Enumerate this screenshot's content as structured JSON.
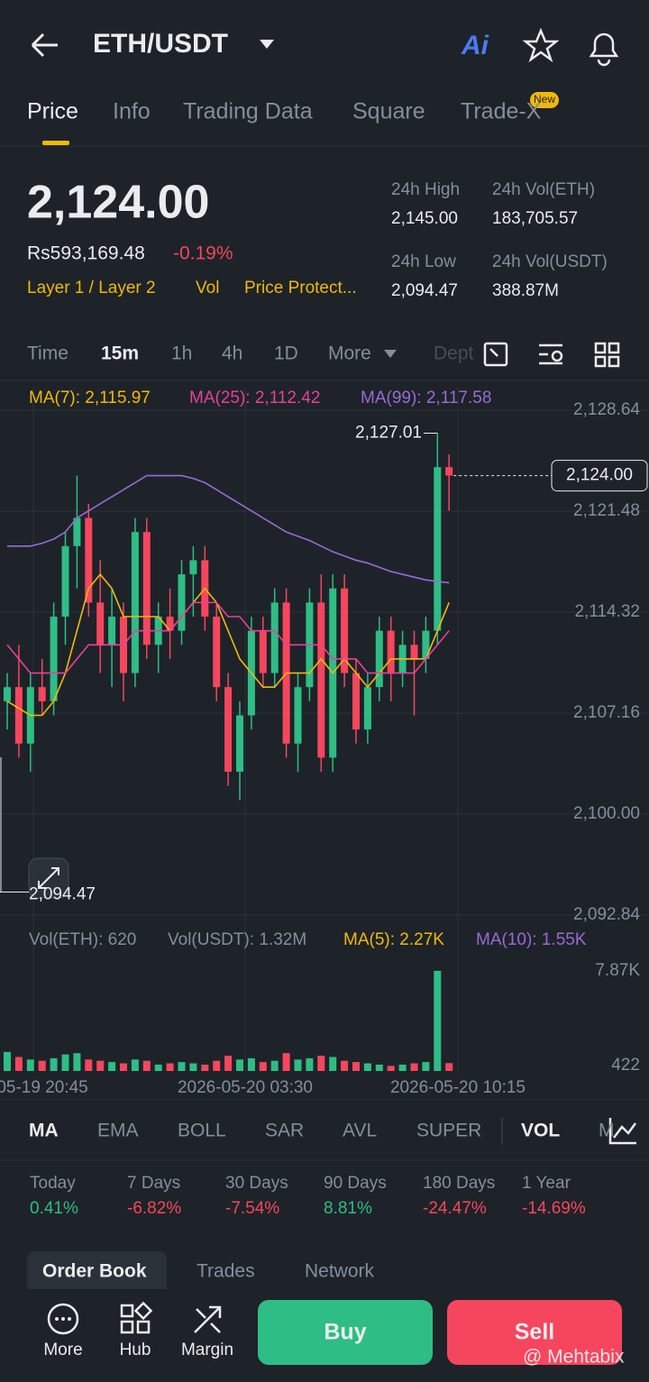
{
  "header": {
    "pair": "ETH/USDT",
    "ai": "Ai"
  },
  "tabs": [
    "Price",
    "Info",
    "Trading Data",
    "Square",
    "Trade-X"
  ],
  "tab_badge": "New",
  "ticker": {
    "price": "2,124.00",
    "fiat": "Rs593,169.48",
    "change": "-0.19%",
    "tags": [
      "Layer 1 / Layer 2",
      "Vol",
      "Price Protect..."
    ],
    "stats": [
      {
        "label": "24h High",
        "value": "2,145.00"
      },
      {
        "label": "24h Vol(ETH)",
        "value": "183,705.57"
      },
      {
        "label": "24h Low",
        "value": "2,094.47"
      },
      {
        "label": "24h Vol(USDT)",
        "value": "388.87M"
      }
    ]
  },
  "timeframes": [
    "Time",
    "15m",
    "1h",
    "4h",
    "1D",
    "More",
    "Dept"
  ],
  "chart_data": {
    "type": "candlestick",
    "open": [
      2108,
      2109,
      2105,
      2109,
      2108,
      2114,
      2119,
      2121,
      2115,
      2112,
      2114,
      2110,
      2120,
      2112,
      2114,
      2113,
      2117,
      2118,
      2114,
      2109,
      2103,
      2107,
      2113,
      2110,
      2115,
      2105,
      2109,
      2115,
      2104,
      2116,
      2110,
      2106,
      2109,
      2113,
      2110,
      2112,
      2111,
      2113,
      2124.6
    ],
    "high": [
      2110,
      2112,
      2110,
      2111,
      2115,
      2120,
      2124,
      2122,
      2118,
      2116,
      2115,
      2121,
      2121,
      2115,
      2116,
      2118,
      2119,
      2119,
      2115,
      2110,
      2108,
      2114,
      2114,
      2116,
      2116,
      2110,
      2116,
      2117,
      2117,
      2117,
      2111,
      2110,
      2114,
      2114,
      2113,
      2113,
      2114,
      2127.01,
      2125.5
    ],
    "low": [
      2106,
      2104,
      2103,
      2107,
      2107,
      2112,
      2116,
      2114,
      2110,
      2109,
      2108,
      2109,
      2111,
      2110,
      2111,
      2112,
      2114,
      2113,
      2108,
      2102,
      2101,
      2106,
      2109,
      2109,
      2104,
      2103,
      2108,
      2103,
      2103,
      2109,
      2105,
      2105,
      2108,
      2108,
      2109,
      2107,
      2110,
      2112,
      2121.5
    ],
    "close": [
      2109,
      2105,
      2109,
      2108,
      2114,
      2119,
      2121,
      2115,
      2112,
      2114,
      2110,
      2120,
      2112,
      2114,
      2113,
      2117,
      2118,
      2114,
      2109,
      2103,
      2107,
      2113,
      2110,
      2115,
      2105,
      2109,
      2115,
      2104,
      2116,
      2110,
      2106,
      2109,
      2113,
      2110,
      2112,
      2111,
      2113,
      2124.6,
      2124
    ],
    "up_color": "#2ebd85",
    "down_color": "#f6465d",
    "series": [
      {
        "name": "MA(7): 2,115.97",
        "color": "#f0b90b",
        "values": [
          2108,
          2107.5,
          2107,
          2107,
          2108,
          2110,
          2113,
          2116,
          2117,
          2116,
          2114,
          2114,
          2114,
          2114,
          2113,
          2114,
          2115,
          2116,
          2115,
          2113,
          2111,
          2110,
          2109,
          2109,
          2110,
          2110,
          2110,
          2111,
          2110,
          2111,
          2110,
          2109,
          2110,
          2111,
          2111,
          2111,
          2111,
          2113,
          2115
        ]
      },
      {
        "name": "MA(25): 2,112.42",
        "color": "#e6409b",
        "values": [
          2112,
          2111,
          2110,
          2110,
          2110,
          2110,
          2111,
          2112,
          2112,
          2112,
          2112,
          2113,
          2113,
          2113,
          2113,
          2114,
          2115,
          2115,
          2115,
          2114,
          2114,
          2113,
          2113,
          2113,
          2112,
          2112,
          2112,
          2112,
          2111,
          2111,
          2111,
          2110,
          2110,
          2110,
          2110,
          2110,
          2111,
          2112,
          2113
        ]
      },
      {
        "name": "MA(99): 2,117.58",
        "color": "#9a6ad6",
        "values": [
          2119,
          2119,
          2119,
          2119.2,
          2119.5,
          2120,
          2121,
          2121.5,
          2122,
          2122.5,
          2123,
          2123.5,
          2124,
          2124,
          2124,
          2124,
          2123.8,
          2123.5,
          2123,
          2122.5,
          2122,
          2121.5,
          2121,
          2120.5,
          2120,
          2119.7,
          2119.4,
          2119,
          2118.6,
          2118.3,
          2118,
          2117.8,
          2117.5,
          2117.2,
          2117,
          2116.8,
          2116.6,
          2116.5,
          2116.4
        ]
      }
    ],
    "ylim": [
      2092.84,
      2128.64
    ],
    "yticks": [
      {
        "value": 2128.64,
        "label": "2,128.64"
      },
      {
        "value": 2121.48,
        "label": "2,121.48"
      },
      {
        "value": 2114.32,
        "label": "2,114.32"
      },
      {
        "value": 2107.16,
        "label": "2,107.16"
      },
      {
        "value": 2100,
        "label": "2,100.00"
      },
      {
        "value": 2092.84,
        "label": "2,092.84"
      }
    ],
    "high_label": {
      "value": 2127.01,
      "label": "2,127.01"
    },
    "low_label": {
      "value": 2094.47,
      "label": "2,094.47"
    },
    "last_price": {
      "value": 2124,
      "label": "2,124.00"
    },
    "volume": {
      "values": [
        1500,
        1100,
        900,
        800,
        1000,
        1300,
        1400,
        900,
        800,
        700,
        600,
        900,
        800,
        500,
        600,
        700,
        600,
        500,
        800,
        1200,
        900,
        1000,
        700,
        800,
        1400,
        900,
        1000,
        1200,
        1100,
        800,
        700,
        600,
        500,
        400,
        500,
        600,
        700,
        7870,
        620
      ],
      "ylim": [
        0,
        8500
      ],
      "yticks": [
        {
          "value": 7870,
          "label": "7.87K"
        },
        422
      ],
      "legend": [
        "Vol(ETH): 620",
        "Vol(USDT): 1.32M",
        "MA(5): 2.27K",
        "MA(10): 1.55K"
      ]
    },
    "x_labels": [
      "-05-19 20:45",
      "2026-05-20 03:30",
      "2026-05-20 10:15"
    ]
  },
  "indicators": [
    "MA",
    "EMA",
    "BOLL",
    "SAR",
    "AVL",
    "SUPER",
    "VOL",
    "M"
  ],
  "performance": [
    {
      "label": "Today",
      "value": "0.41%"
    },
    {
      "label": "7 Days",
      "value": "-6.82%"
    },
    {
      "label": "30 Days",
      "value": "-7.54%"
    },
    {
      "label": "90 Days",
      "value": "8.81%"
    },
    {
      "label": "180 Days",
      "value": "-24.47%"
    },
    {
      "label": "1 Year",
      "value": "-14.69%"
    }
  ],
  "book_tabs": [
    "Order Book",
    "Trades",
    "Network"
  ],
  "nav": [
    "More",
    "Hub",
    "Margin"
  ],
  "buy": "Buy",
  "sell": "Sell",
  "watermark": "@ Mehtabix"
}
